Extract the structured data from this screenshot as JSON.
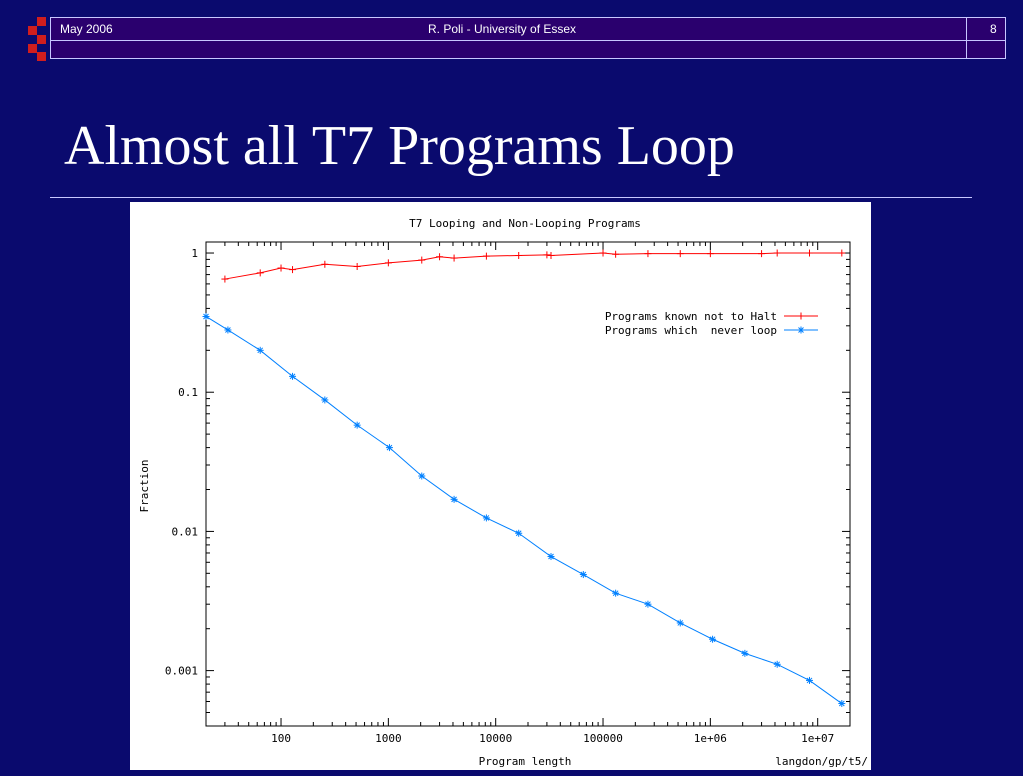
{
  "header": {
    "date": "May 2006",
    "author": "R. Poli - University of Essex",
    "page_number": "8"
  },
  "colors": {
    "background": "#0a0a6e",
    "header": "#2a006e",
    "logo_red": "#d01e1e",
    "series_halt": "#ff0000",
    "series_loop": "#0080ff"
  },
  "slide": {
    "title": "Almost all T7 Programs Loop"
  },
  "chart_data": {
    "type": "line",
    "title": "T7 Looping and Non-Looping Programs",
    "xlabel": "Program length",
    "ylabel": "Fraction",
    "xscale": "log",
    "yscale": "log",
    "xlim": [
      20,
      20000000
    ],
    "ylim": [
      0.0004,
      1.2
    ],
    "x_ticks": [
      "100",
      "1000",
      "10000",
      "100000",
      "1e+06",
      "1e+07"
    ],
    "y_ticks": [
      "1",
      "0.1",
      "0.01",
      "0.001"
    ],
    "legend_position": "top-right",
    "corner_text": "langdon/gp/t5/",
    "series": [
      {
        "name": "Programs known not to Halt",
        "color": "#ff0000",
        "marker": "plus",
        "x": [
          30,
          64,
          100,
          128,
          256,
          512,
          1000,
          2048,
          3000,
          4096,
          8192,
          16384,
          30000,
          32768,
          100000,
          131072,
          262144,
          524288,
          1000000,
          3000000,
          4194304,
          8388608,
          16777216
        ],
        "y": [
          0.65,
          0.72,
          0.78,
          0.76,
          0.83,
          0.8,
          0.85,
          0.89,
          0.94,
          0.92,
          0.95,
          0.96,
          0.97,
          0.96,
          1.0,
          0.98,
          0.99,
          0.99,
          0.99,
          0.99,
          1.0,
          1.0,
          1.0
        ]
      },
      {
        "name": "Programs which  never loop",
        "color": "#0080ff",
        "marker": "star",
        "x": [
          20,
          32,
          64,
          128,
          256,
          512,
          1024,
          2048,
          4096,
          8192,
          16384,
          32768,
          65536,
          131072,
          262144,
          524288,
          1048576,
          2097152,
          4194304,
          8388608,
          16777216
        ],
        "y": [
          0.35,
          0.28,
          0.2,
          0.13,
          0.088,
          0.058,
          0.04,
          0.025,
          0.017,
          0.0125,
          0.0097,
          0.0066,
          0.0049,
          0.0036,
          0.003,
          0.0022,
          0.00168,
          0.00133,
          0.00111,
          0.00085,
          0.00058
        ]
      }
    ]
  }
}
